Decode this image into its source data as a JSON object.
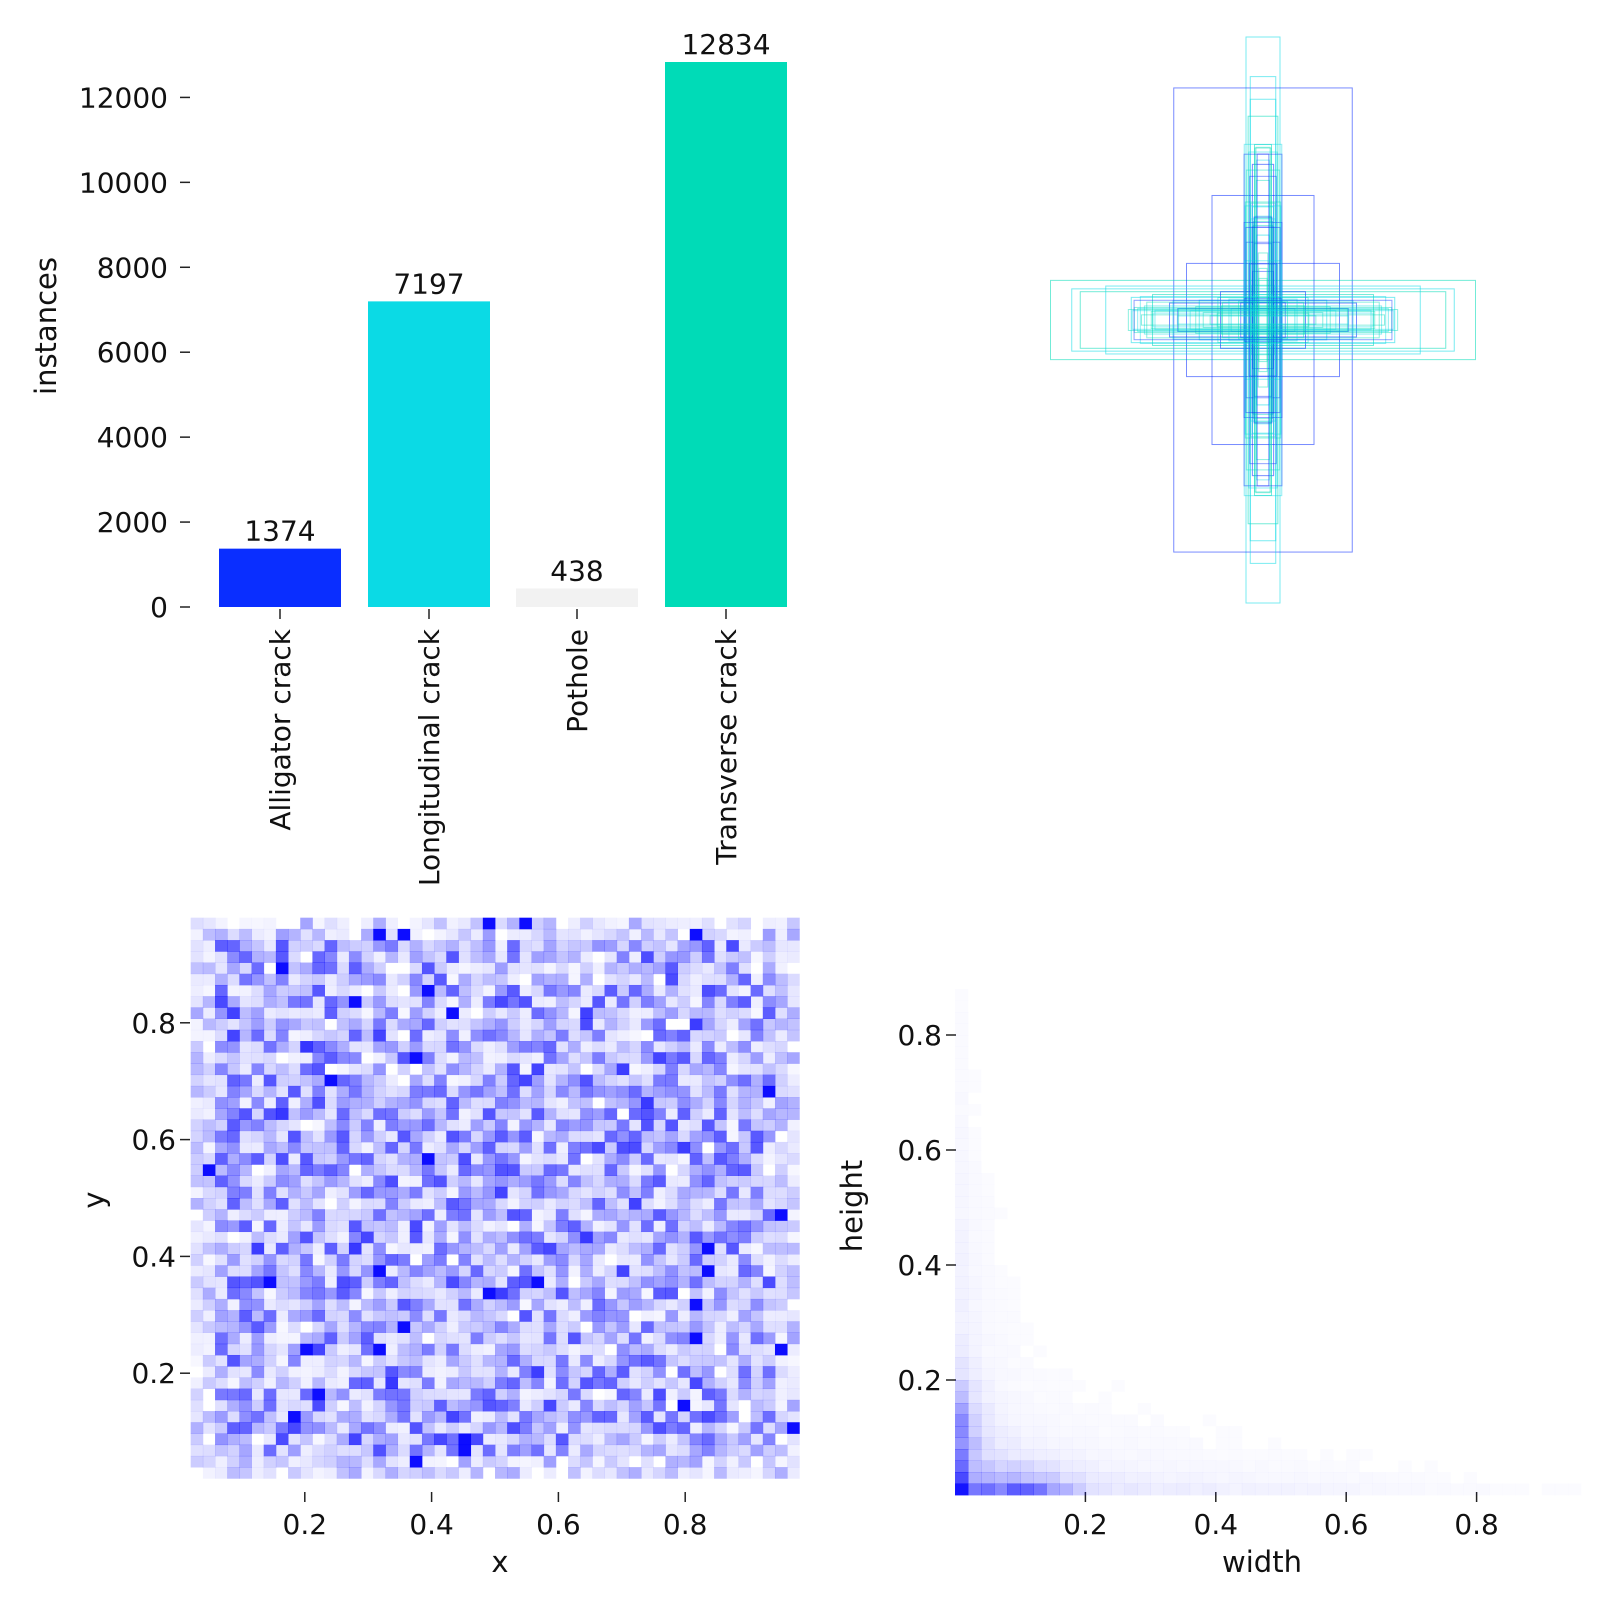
{
  "chart_data": [
    {
      "type": "bar",
      "id": "instances-bar",
      "categories": [
        "Alligator crack",
        "Longitudinal crack",
        "Pothole",
        "Transverse crack"
      ],
      "values": [
        1374,
        7197,
        438,
        12834
      ],
      "data_labels": [
        "1374",
        "7197",
        "438",
        "12834"
      ],
      "colors": [
        "#0a2eff",
        "#0bdae5",
        "#f2f2f2",
        "#00dbb7"
      ],
      "ylabel": "instances",
      "ylim": [
        0,
        12834
      ],
      "yticks": [
        0,
        2000,
        4000,
        6000,
        8000,
        10000,
        12000
      ],
      "ytick_labels": [
        "0",
        "2000",
        "4000",
        "6000",
        "8000",
        "10000",
        "12000"
      ]
    },
    {
      "type": "boxes",
      "id": "label-boxes",
      "description_units": "normalized width/height, boxes centered",
      "colors": [
        "#0a2eff",
        "#0bdae5",
        "#00dbb7"
      ],
      "boxes": [
        {
          "w": 0.08,
          "h": 1.0,
          "c": 1
        },
        {
          "w": 0.42,
          "h": 0.82,
          "c": 0
        },
        {
          "w": 1.0,
          "h": 0.14,
          "c": 2
        },
        {
          "w": 0.24,
          "h": 0.44,
          "c": 0
        },
        {
          "w": 0.36,
          "h": 0.2,
          "c": 0
        },
        {
          "w": 0.9,
          "h": 0.11,
          "c": 1
        },
        {
          "w": 0.86,
          "h": 0.1,
          "c": 2
        },
        {
          "w": 0.05,
          "h": 0.55,
          "c": 0
        },
        {
          "w": 0.06,
          "h": 0.78,
          "c": 1
        },
        {
          "w": 0.07,
          "h": 0.72,
          "c": 2
        },
        {
          "w": 0.52,
          "h": 0.09,
          "c": 2
        },
        {
          "w": 0.62,
          "h": 0.08,
          "c": 1
        },
        {
          "w": 0.2,
          "h": 0.1,
          "c": 0
        },
        {
          "w": 0.05,
          "h": 0.4,
          "c": 1
        },
        {
          "w": 0.3,
          "h": 0.07,
          "c": 1
        },
        {
          "w": 0.04,
          "h": 0.62,
          "c": 2
        },
        {
          "w": 0.74,
          "h": 0.12,
          "c": 1
        },
        {
          "w": 0.44,
          "h": 0.06,
          "c": 0
        },
        {
          "w": 0.03,
          "h": 0.3,
          "c": 1
        },
        {
          "w": 0.15,
          "h": 0.04,
          "c": 1
        },
        {
          "w": 0.06,
          "h": 0.86,
          "c": 1
        }
      ]
    },
    {
      "type": "heatmap",
      "id": "xy-heatmap",
      "xlabel": "x",
      "ylabel": "y",
      "xlim": [
        0,
        1
      ],
      "ylim": [
        0,
        1
      ],
      "xticks": [
        0.2,
        0.4,
        0.6,
        0.8
      ],
      "xtick_labels": [
        "0.2",
        "0.4",
        "0.6",
        "0.8"
      ],
      "yticks": [
        0.2,
        0.4,
        0.6,
        0.8
      ],
      "ytick_labels": [
        "0.2",
        "0.4",
        "0.6",
        "0.8"
      ],
      "distribution": "roughly uniform over [0.02, 0.98] with noise",
      "bins": 50,
      "color": "#0000ff"
    },
    {
      "type": "heatmap",
      "id": "wh-heatmap",
      "xlabel": "width",
      "ylabel": "height",
      "xlim": [
        0,
        1
      ],
      "ylim": [
        0,
        1
      ],
      "xticks": [
        0.2,
        0.4,
        0.6,
        0.8
      ],
      "xtick_labels": [
        "0.2",
        "0.4",
        "0.6",
        "0.8"
      ],
      "yticks": [
        0.2,
        0.4,
        0.6,
        0.8
      ],
      "ytick_labels": [
        "0.2",
        "0.4",
        "0.6",
        "0.8"
      ],
      "distribution": "concentrated near width<0.2 and height<0.05, with tails along both axes",
      "bins": 50,
      "color": "#0000ff"
    }
  ]
}
